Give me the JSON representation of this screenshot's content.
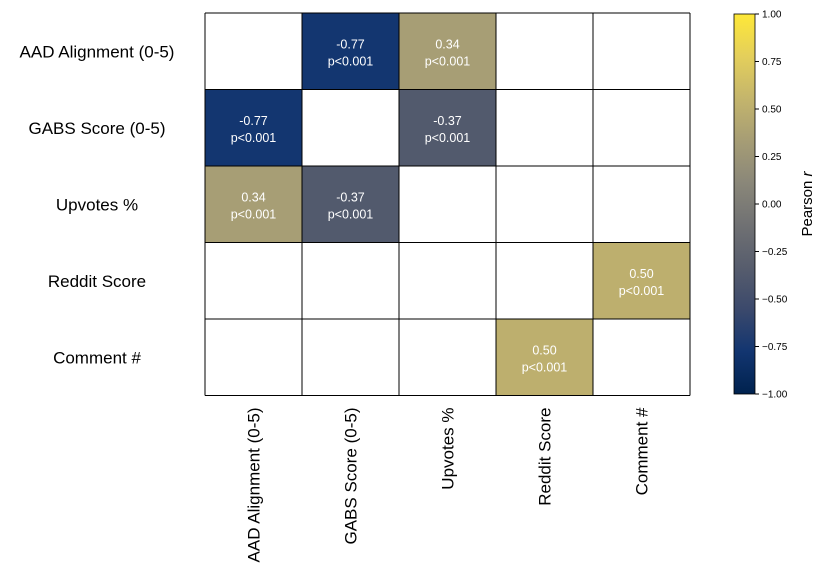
{
  "chart_data": {
    "type": "heatmap",
    "row_labels": [
      "AAD Alignment (0-5)",
      "GABS Score (0-5)",
      "Upvotes %",
      "Reddit Score",
      "Comment #"
    ],
    "col_labels": [
      "AAD Alignment (0-5)",
      "GABS Score (0-5)",
      "Upvotes %",
      "Reddit Score",
      "Comment #"
    ],
    "cells": [
      {
        "row": 0,
        "col": 1,
        "r": -0.77,
        "label": "-0.77",
        "p": "p<0.001"
      },
      {
        "row": 0,
        "col": 2,
        "r": 0.34,
        "label": "0.34",
        "p": "p<0.001"
      },
      {
        "row": 1,
        "col": 0,
        "r": -0.77,
        "label": "-0.77",
        "p": "p<0.001"
      },
      {
        "row": 1,
        "col": 2,
        "r": -0.37,
        "label": "-0.37",
        "p": "p<0.001"
      },
      {
        "row": 2,
        "col": 0,
        "r": 0.34,
        "label": "0.34",
        "p": "p<0.001"
      },
      {
        "row": 2,
        "col": 1,
        "r": -0.37,
        "label": "-0.37",
        "p": "p<0.001"
      },
      {
        "row": 3,
        "col": 4,
        "r": 0.5,
        "label": "0.50",
        "p": "p<0.001"
      },
      {
        "row": 4,
        "col": 3,
        "r": 0.5,
        "label": "0.50",
        "p": "p<0.001"
      }
    ],
    "colorbar": {
      "label": "Pearson r",
      "vmin": -1.0,
      "vmax": 1.0,
      "ticks": [
        1.0,
        0.75,
        0.5,
        0.25,
        0.0,
        -0.25,
        -0.5,
        -0.75,
        -1.0
      ],
      "tick_labels": [
        "1.00",
        "0.75",
        "0.50",
        "0.25",
        "0.00",
        "−0.25",
        "−0.50",
        "−0.75",
        "−1.00"
      ],
      "colormap": "cividis",
      "stops": [
        "#00224e",
        "#123570",
        "#3b496c",
        "#575d6d",
        "#707173",
        "#8a8779",
        "#a69d75",
        "#c4b56c",
        "#e4cf5b",
        "#fee838"
      ]
    }
  }
}
